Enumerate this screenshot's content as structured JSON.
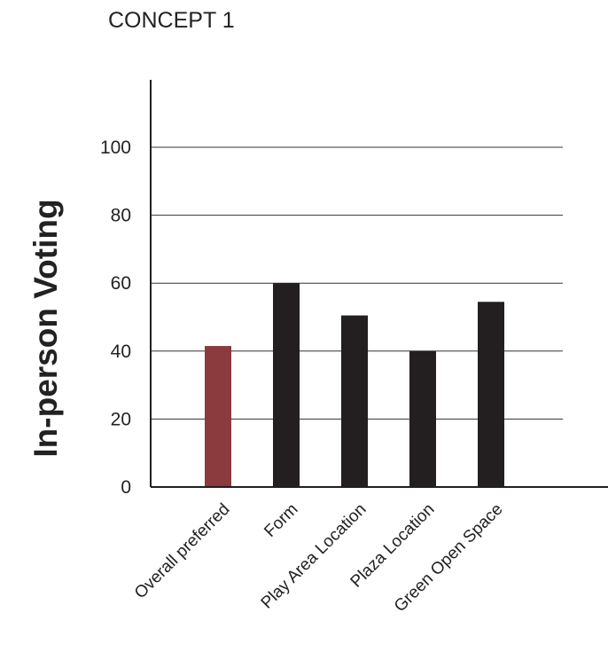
{
  "chart_data": {
    "type": "bar",
    "title": "CONCEPT 1",
    "xlabel": "",
    "ylabel": "In-person Voting",
    "categories": [
      "Overall preferred",
      "Form",
      "Play Area Location",
      "Plaza Location",
      "Green Open Space"
    ],
    "values": [
      41.5,
      60,
      50.5,
      40,
      54.5
    ],
    "colors": [
      "#8b3a3e",
      "#231f20",
      "#231f20",
      "#231f20",
      "#231f20"
    ],
    "ylim": [
      0,
      100
    ],
    "yticks": [
      0,
      20,
      40,
      60,
      80,
      100
    ],
    "grid": true,
    "legend": "none"
  }
}
